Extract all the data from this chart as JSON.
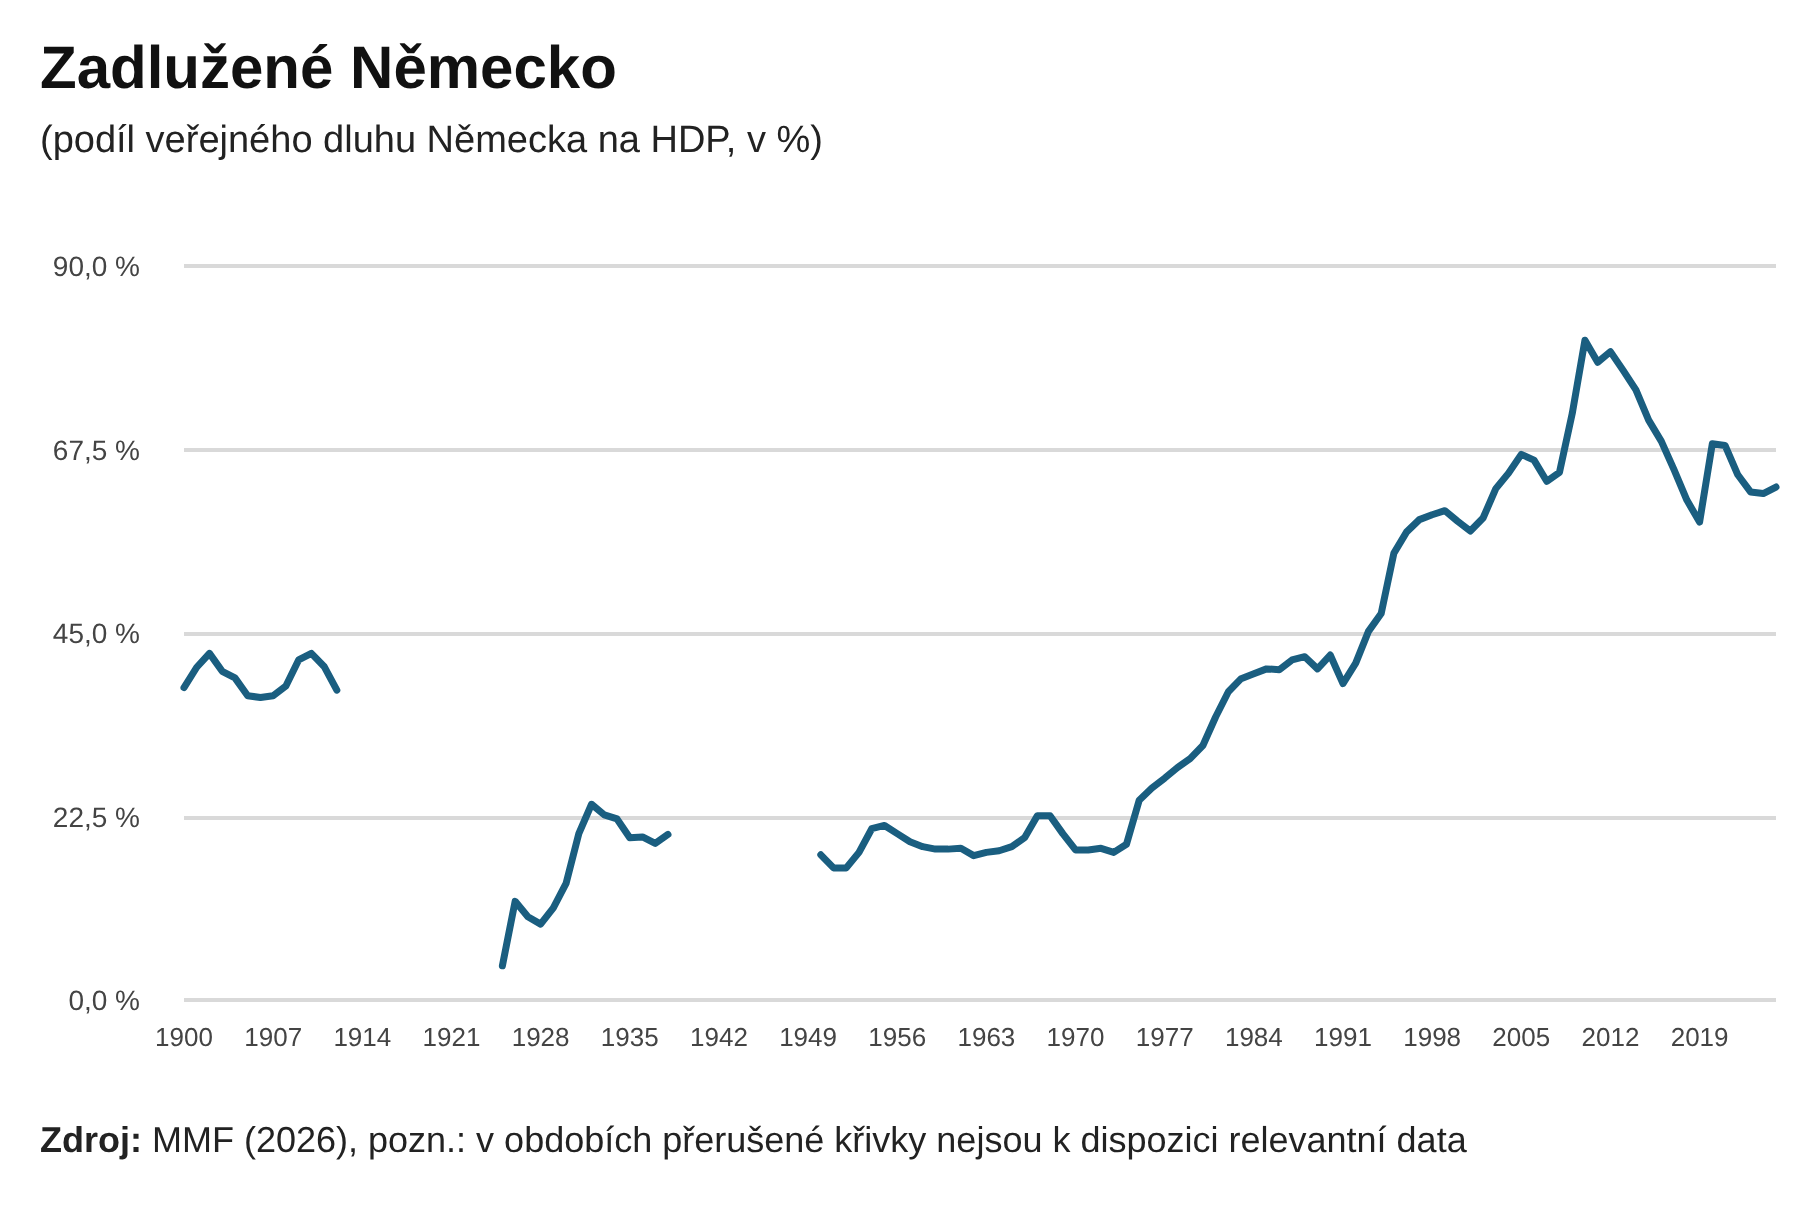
{
  "chart_data": {
    "type": "line",
    "title": "Zadlužené Německo",
    "subtitle": "(podíl veřejného dluhu Německa na HDP, v %)",
    "annotations": [
      "Zdroj: MMF (2026), pozn.: v obdobích přerušené křivky nejsou k dispozici relevantní data"
    ],
    "x": [
      1900,
      1901,
      1902,
      1903,
      1904,
      1905,
      1906,
      1907,
      1908,
      1909,
      1910,
      1911,
      1912,
      1913,
      1925,
      1926,
      1927,
      1928,
      1929,
      1930,
      1931,
      1932,
      1933,
      1934,
      1935,
      1936,
      1937,
      1938,
      1939,
      1950,
      1951,
      1952,
      1953,
      1954,
      1955,
      1956,
      1957,
      1958,
      1959,
      1960,
      1961,
      1962,
      1963,
      1964,
      1965,
      1966,
      1967,
      1968,
      1969,
      1970,
      1971,
      1972,
      1973,
      1974,
      1975,
      1976,
      1977,
      1978,
      1979,
      1980,
      1981,
      1982,
      1983,
      1984,
      1985,
      1986,
      1987,
      1988,
      1989,
      1990,
      1991,
      1992,
      1993,
      1994,
      1995,
      1996,
      1997,
      1998,
      1999,
      2000,
      2001,
      2002,
      2003,
      2004,
      2005,
      2006,
      2007,
      2008,
      2009,
      2010,
      2011,
      2012,
      2013,
      2014,
      2015,
      2016,
      2017,
      2018,
      2019,
      2020,
      2021,
      2022,
      2023,
      2024,
      2025
    ],
    "series": [
      {
        "color": "#1a5e80",
        "values": [
          38.3,
          40.8,
          42.5,
          40.3,
          39.5,
          37.3,
          37.1,
          37.3,
          38.5,
          41.7,
          42.5,
          40.9,
          38.0,
          null,
          4.2,
          12.1,
          10.2,
          9.3,
          11.3,
          14.3,
          20.4,
          24.0,
          22.7,
          22.2,
          19.9,
          20.0,
          19.2,
          20.3,
          null,
          17.8,
          16.2,
          16.2,
          18.1,
          21.0,
          21.4,
          20.4,
          19.4,
          18.8,
          18.5,
          18.5,
          18.6,
          17.7,
          18.1,
          18.3,
          18.8,
          19.9,
          22.6,
          22.6,
          20.4,
          18.4,
          18.4,
          18.6,
          18.1,
          19.1,
          24.5,
          26.0,
          27.2,
          28.5,
          29.6,
          31.2,
          34.7,
          37.8,
          39.4,
          40.0,
          40.6,
          40.5,
          41.7,
          42.1,
          40.6,
          42.3,
          38.8,
          41.3,
          45.2,
          47.4,
          54.8,
          57.4,
          58.9,
          59.5,
          60.0,
          58.7,
          57.5,
          59.1,
          62.7,
          64.6,
          66.9,
          66.2,
          63.6,
          64.7,
          71.9,
          80.9,
          78.2,
          79.5,
          77.2,
          74.8,
          71.1,
          68.5,
          65.0,
          61.3,
          58.6,
          68.2,
          68.0,
          64.4,
          62.3,
          62.1,
          62.9
        ]
      }
    ],
    "xlim": [
      1900,
      2025
    ],
    "xticks": [
      1900,
      1907,
      1914,
      1921,
      1928,
      1935,
      1942,
      1949,
      1956,
      1963,
      1970,
      1977,
      1984,
      1991,
      1998,
      2005,
      2012,
      2019
    ],
    "ylim": [
      0,
      90
    ],
    "yticks": [
      {
        "value": 0,
        "label": "0,0 %"
      },
      {
        "value": 22.5,
        "label": "22,5 %"
      },
      {
        "value": 45,
        "label": "45,0 %"
      },
      {
        "value": 67.5,
        "label": "67,5 %"
      },
      {
        "value": 90,
        "label": "90,0 %"
      }
    ],
    "grid": "y",
    "marker": "none",
    "line_style": "solid"
  }
}
